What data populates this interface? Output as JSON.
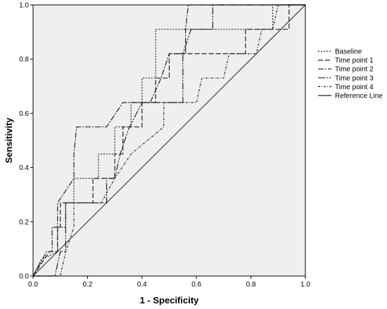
{
  "chart_data": {
    "type": "line",
    "xlabel": "1 - Specificity",
    "ylabel": "Sensitivity",
    "xlim": [
      0,
      1
    ],
    "ylim": [
      0,
      1
    ],
    "xticks": [
      "0.0",
      "0.2",
      "0.4",
      "0.6",
      "0.8",
      "1.0"
    ],
    "yticks": [
      "0.0",
      "0.2",
      "0.4",
      "0.6",
      "0.8",
      "1.0"
    ],
    "grid": false,
    "legend_position": "right",
    "plot_background": "#efefef",
    "series": [
      {
        "name": "Baseline",
        "dash": "2,2",
        "points": [
          [
            0,
            0
          ],
          [
            0.03,
            0.06
          ],
          [
            0.09,
            0.09
          ],
          [
            0.09,
            0.18
          ],
          [
            0.12,
            0.18
          ],
          [
            0.12,
            0.27
          ],
          [
            0.15,
            0.27
          ],
          [
            0.15,
            0.36
          ],
          [
            0.24,
            0.36
          ],
          [
            0.24,
            0.45
          ],
          [
            0.3,
            0.45
          ],
          [
            0.3,
            0.55
          ],
          [
            0.36,
            0.55
          ],
          [
            0.36,
            0.64
          ],
          [
            0.4,
            0.64
          ],
          [
            0.4,
            0.73
          ],
          [
            0.45,
            0.73
          ],
          [
            0.45,
            0.91
          ],
          [
            0.88,
            0.91
          ],
          [
            0.88,
            1.0
          ],
          [
            1.0,
            1.0
          ]
        ]
      },
      {
        "name": "Time point 1",
        "dash": "7,3",
        "points": [
          [
            0,
            0
          ],
          [
            0.06,
            0.09
          ],
          [
            0.09,
            0.09
          ],
          [
            0.09,
            0.18
          ],
          [
            0.1,
            0.18
          ],
          [
            0.1,
            0.27
          ],
          [
            0.22,
            0.27
          ],
          [
            0.22,
            0.36
          ],
          [
            0.3,
            0.36
          ],
          [
            0.3,
            0.45
          ],
          [
            0.33,
            0.45
          ],
          [
            0.33,
            0.55
          ],
          [
            0.4,
            0.55
          ],
          [
            0.4,
            0.64
          ],
          [
            0.45,
            0.64
          ],
          [
            0.45,
            0.73
          ],
          [
            0.5,
            0.73
          ],
          [
            0.5,
            0.82
          ],
          [
            0.78,
            0.82
          ],
          [
            0.78,
            0.91
          ],
          [
            0.94,
            0.91
          ],
          [
            0.94,
            1.0
          ],
          [
            1.0,
            1.0
          ]
        ]
      },
      {
        "name": "Time point 2",
        "dash": "8,2,2,2",
        "points": [
          [
            0,
            0
          ],
          [
            0.05,
            0.09
          ],
          [
            0.07,
            0.09
          ],
          [
            0.07,
            0.18
          ],
          [
            0.09,
            0.18
          ],
          [
            0.09,
            0.27
          ],
          [
            0.15,
            0.36
          ],
          [
            0.15,
            0.45
          ],
          [
            0.16,
            0.55
          ],
          [
            0.27,
            0.55
          ],
          [
            0.33,
            0.64
          ],
          [
            0.43,
            0.64
          ],
          [
            0.47,
            0.73
          ],
          [
            0.5,
            0.82
          ],
          [
            0.56,
            0.82
          ],
          [
            0.56,
            0.91
          ],
          [
            0.57,
            1.0
          ],
          [
            1.0,
            1.0
          ]
        ]
      },
      {
        "name": "Time point 3",
        "dash": "10,2,2,2,2,2",
        "points": [
          [
            0,
            0
          ],
          [
            0.08,
            0.0
          ],
          [
            0.1,
            0.09
          ],
          [
            0.12,
            0.09
          ],
          [
            0.12,
            0.18
          ],
          [
            0.12,
            0.27
          ],
          [
            0.27,
            0.27
          ],
          [
            0.27,
            0.36
          ],
          [
            0.3,
            0.36
          ],
          [
            0.32,
            0.45
          ],
          [
            0.35,
            0.54
          ],
          [
            0.4,
            0.64
          ],
          [
            0.55,
            0.64
          ],
          [
            0.55,
            0.82
          ],
          [
            0.58,
            0.91
          ],
          [
            0.66,
            0.91
          ],
          [
            0.66,
            1.0
          ],
          [
            1.0,
            1.0
          ]
        ]
      },
      {
        "name": "Time point 4",
        "dash": "3,2,1,2",
        "points": [
          [
            0,
            0
          ],
          [
            0.1,
            0.0
          ],
          [
            0.12,
            0.09
          ],
          [
            0.15,
            0.18
          ],
          [
            0.15,
            0.27
          ],
          [
            0.25,
            0.27
          ],
          [
            0.3,
            0.36
          ],
          [
            0.36,
            0.45
          ],
          [
            0.48,
            0.55
          ],
          [
            0.48,
            0.64
          ],
          [
            0.6,
            0.64
          ],
          [
            0.62,
            0.73
          ],
          [
            0.7,
            0.73
          ],
          [
            0.72,
            0.82
          ],
          [
            0.82,
            0.82
          ],
          [
            0.84,
            0.91
          ],
          [
            0.88,
            0.91
          ],
          [
            0.9,
            1.0
          ],
          [
            1.0,
            1.0
          ]
        ]
      },
      {
        "name": "Reference Line",
        "dash": "",
        "points": [
          [
            0,
            0
          ],
          [
            1,
            1
          ]
        ]
      }
    ]
  }
}
